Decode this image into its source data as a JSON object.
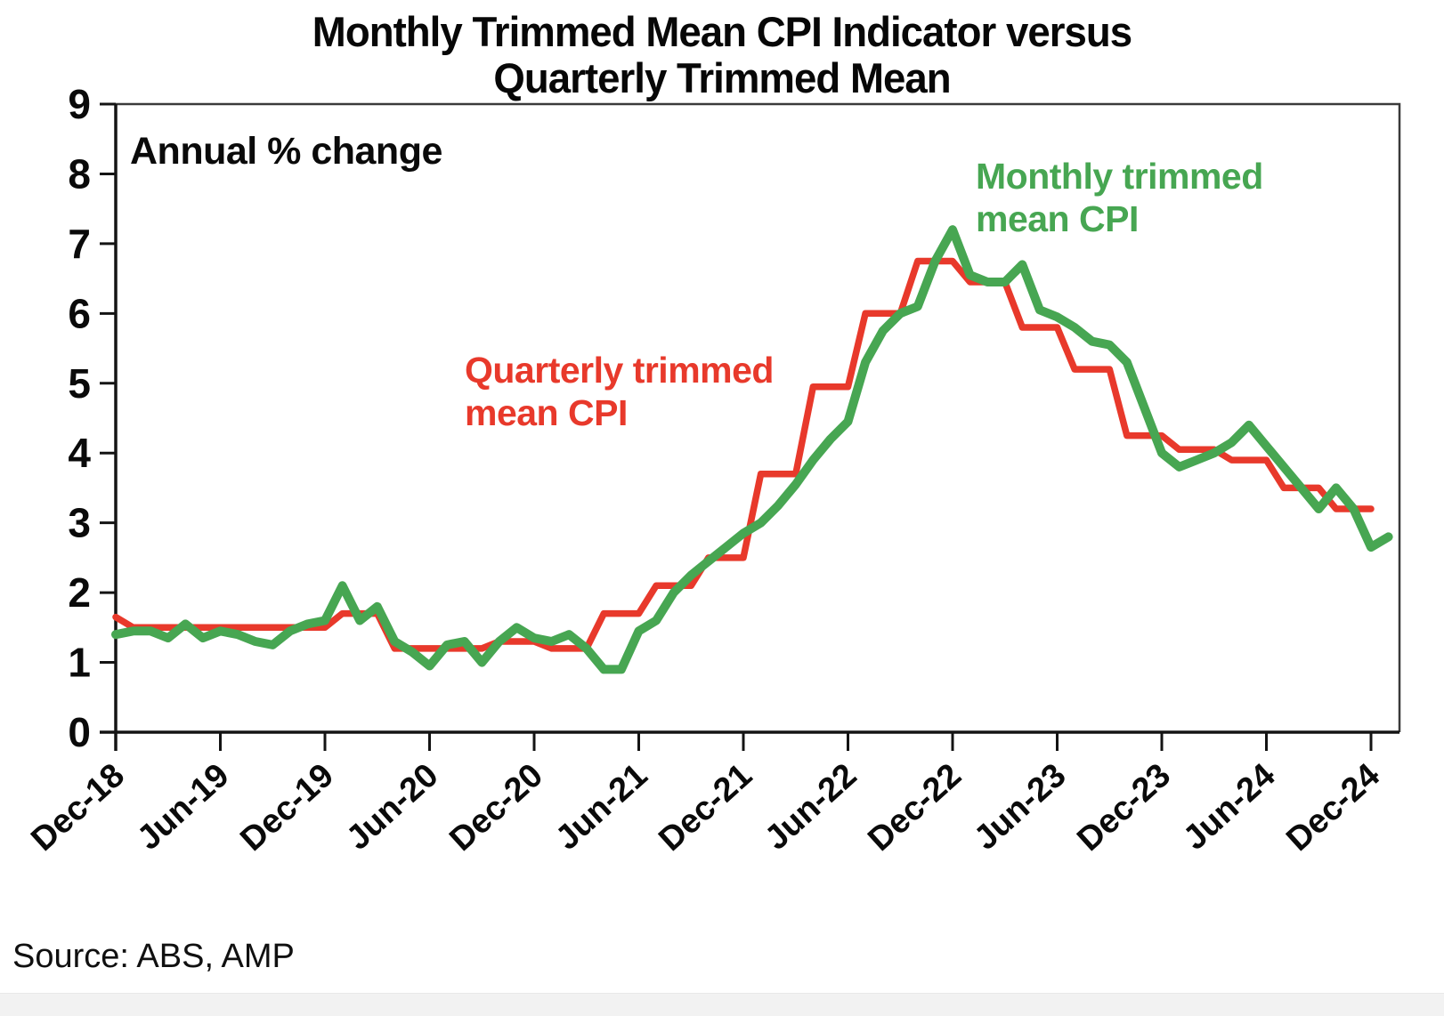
{
  "title": {
    "line1": "Monthly Trimmed Mean CPI Indicator versus",
    "line2": "Quarterly Trimmed Mean"
  },
  "annotation": "Annual % change",
  "source": "Source: ABS, AMP",
  "series_labels": {
    "monthly": {
      "line1": "Monthly trimmed",
      "line2": "mean CPI"
    },
    "quarterly": {
      "line1": "Quarterly trimmed",
      "line2": "mean CPI"
    }
  },
  "colors": {
    "monthly_green": "#47a652",
    "quarterly_red": "#e8392b",
    "axis_black": "#141414",
    "frame_grey": "#3a3a3a",
    "text_black": "#0a0a0a"
  },
  "chart_data": {
    "type": "line",
    "title": "Monthly Trimmed Mean CPI Indicator versus Quarterly Trimmed Mean",
    "ylabel": "Annual % change",
    "ylim": [
      0,
      9
    ],
    "ytick_labels": [
      "0",
      "1",
      "2",
      "3",
      "4",
      "5",
      "6",
      "7",
      "8",
      "9"
    ],
    "grid": false,
    "legend_position": "inline-text-annotations",
    "x_start": "Dec-18",
    "x_end": "Jan-25",
    "x_frequency": "monthly",
    "xtick_labels": [
      "Dec-18",
      "Jun-19",
      "Dec-19",
      "Jun-20",
      "Dec-20",
      "Jun-21",
      "Dec-21",
      "Jun-22",
      "Dec-22",
      "Jun-23",
      "Dec-23",
      "Jun-24",
      "Dec-24"
    ],
    "xtick_month_indices": [
      0,
      6,
      12,
      18,
      24,
      30,
      36,
      42,
      48,
      54,
      60,
      66,
      72
    ],
    "series": [
      {
        "name": "Monthly trimmed mean CPI",
        "color": "#47a652",
        "stroke_width": 10,
        "start_month_index": 0,
        "values": [
          1.4,
          1.45,
          1.45,
          1.35,
          1.55,
          1.35,
          1.45,
          1.4,
          1.3,
          1.25,
          1.45,
          1.55,
          1.6,
          2.1,
          1.6,
          1.8,
          1.3,
          1.15,
          0.95,
          1.25,
          1.3,
          1.0,
          1.3,
          1.5,
          1.35,
          1.3,
          1.4,
          1.2,
          0.9,
          0.9,
          1.45,
          1.6,
          2.0,
          2.25,
          2.45,
          2.65,
          2.85,
          3.0,
          3.25,
          3.55,
          3.9,
          4.2,
          4.45,
          5.3,
          5.75,
          6.0,
          6.1,
          6.75,
          7.2,
          6.55,
          6.45,
          6.45,
          6.7,
          6.05,
          5.95,
          5.8,
          5.6,
          5.55,
          5.3,
          4.65,
          4.0,
          3.8,
          3.9,
          4.0,
          4.15,
          4.4,
          4.1,
          3.8,
          3.5,
          3.2,
          3.5,
          3.2,
          2.65,
          2.8
        ]
      },
      {
        "name": "Quarterly trimmed mean CPI",
        "color": "#e8392b",
        "stroke_width": 7.5,
        "start_month_index": 0,
        "values": [
          1.65,
          1.5,
          1.5,
          1.5,
          1.5,
          1.5,
          1.5,
          1.5,
          1.5,
          1.5,
          1.5,
          1.5,
          1.5,
          1.7,
          1.7,
          1.7,
          1.2,
          1.2,
          1.2,
          1.2,
          1.2,
          1.2,
          1.3,
          1.3,
          1.3,
          1.2,
          1.2,
          1.2,
          1.7,
          1.7,
          1.7,
          2.1,
          2.1,
          2.1,
          2.5,
          2.5,
          2.5,
          3.7,
          3.7,
          3.7,
          4.95,
          4.95,
          4.95,
          6.0,
          6.0,
          6.0,
          6.75,
          6.75,
          6.75,
          6.45,
          6.45,
          6.45,
          5.8,
          5.8,
          5.8,
          5.2,
          5.2,
          5.2,
          4.25,
          4.25,
          4.25,
          4.05,
          4.05,
          4.05,
          3.9,
          3.9,
          3.9,
          3.5,
          3.5,
          3.5,
          3.2,
          3.2,
          3.2
        ]
      }
    ]
  }
}
